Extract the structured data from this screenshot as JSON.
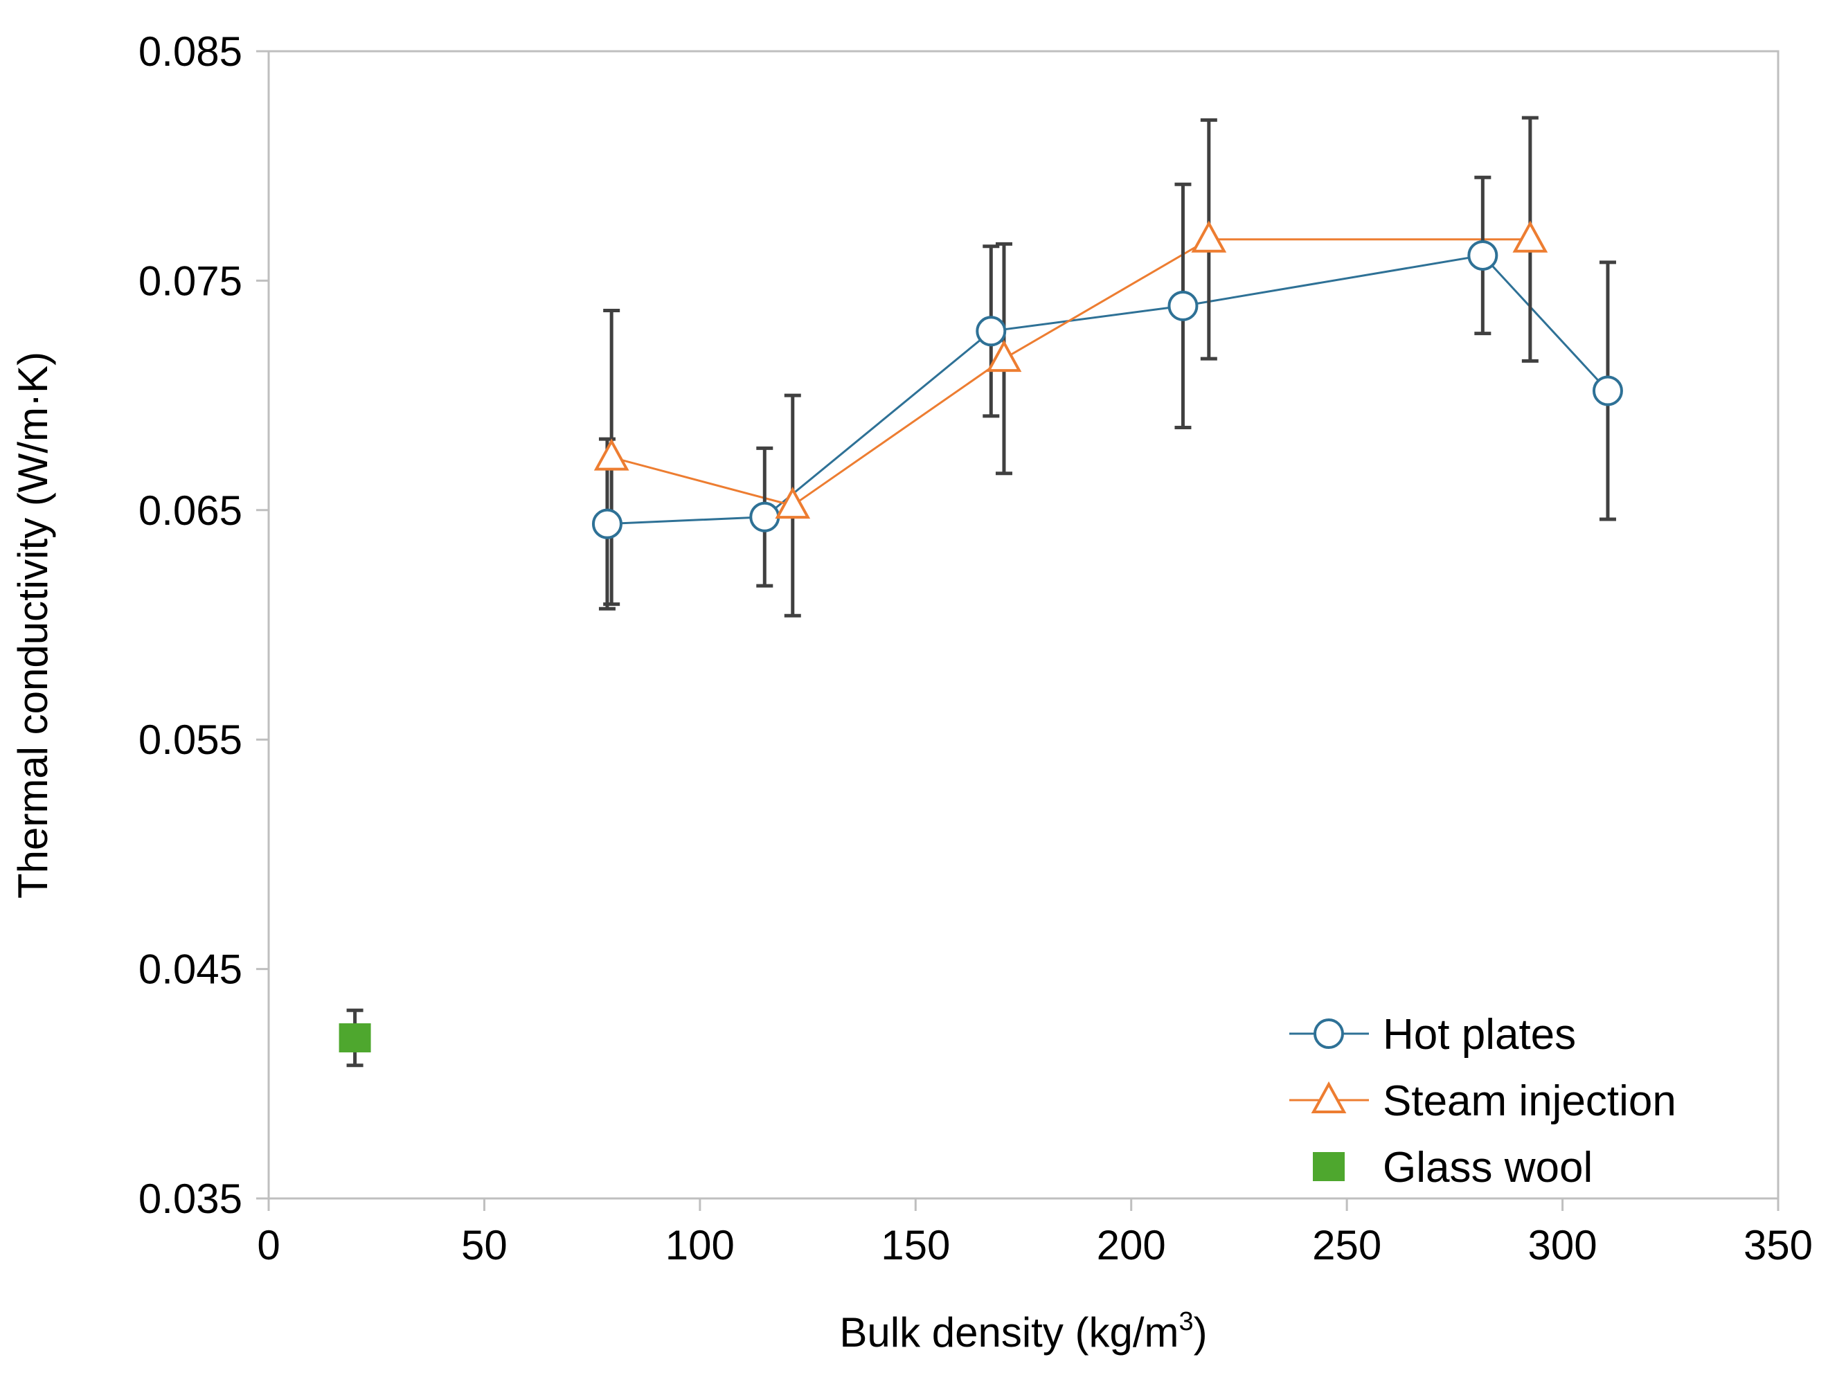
{
  "chart_data": {
    "type": "scatter",
    "title": "",
    "xlabel": "Bulk density (kg/m",
    "xlabel_sup": "3",
    "xlabel_end": ")",
    "ylabel": "Thermal conductivity (W/m·K)",
    "xlim": [
      0,
      350
    ],
    "ylim": [
      0.035,
      0.085
    ],
    "xticks": [
      0,
      50,
      100,
      150,
      200,
      250,
      300,
      350
    ],
    "xtick_labels": [
      "0",
      "50",
      "100",
      "150",
      "200",
      "250",
      "300",
      "350"
    ],
    "yticks": [
      0.035,
      0.045,
      0.055,
      0.065,
      0.075,
      0.085
    ],
    "ytick_labels": [
      "0.035",
      "0.045",
      "0.055",
      "0.065",
      "0.075",
      "0.085"
    ],
    "grid": false,
    "legend_position": "bottom-right",
    "series": [
      {
        "name": "Hot plates",
        "color": "#2E7196",
        "marker": "circle",
        "line": true,
        "points": [
          {
            "x": 78.5,
            "y": 0.0644,
            "err": 0.0037
          },
          {
            "x": 115,
            "y": 0.0647,
            "err": 0.003
          },
          {
            "x": 167.5,
            "y": 0.0728,
            "err": 0.0037
          },
          {
            "x": 212,
            "y": 0.0739,
            "err": 0.0053
          },
          {
            "x": 281.5,
            "y": 0.0761,
            "err": 0.0034
          },
          {
            "x": 310.5,
            "y": 0.0702,
            "err": 0.0056
          }
        ]
      },
      {
        "name": "Steam injection",
        "color": "#ED7D31",
        "marker": "triangle",
        "line": true,
        "points": [
          {
            "x": 79.5,
            "y": 0.0673,
            "err": 0.0064
          },
          {
            "x": 121.5,
            "y": 0.0652,
            "err": 0.0048
          },
          {
            "x": 170.5,
            "y": 0.0716,
            "err": 0.005
          },
          {
            "x": 218,
            "y": 0.0768,
            "err": 0.0052
          },
          {
            "x": 292.5,
            "y": 0.0768,
            "err": 0.0053
          }
        ]
      },
      {
        "name": "Glass wool",
        "color": "#4EA72E",
        "marker": "square",
        "line": false,
        "points": [
          {
            "x": 20,
            "y": 0.042,
            "err": 0.0012
          }
        ]
      }
    ]
  }
}
